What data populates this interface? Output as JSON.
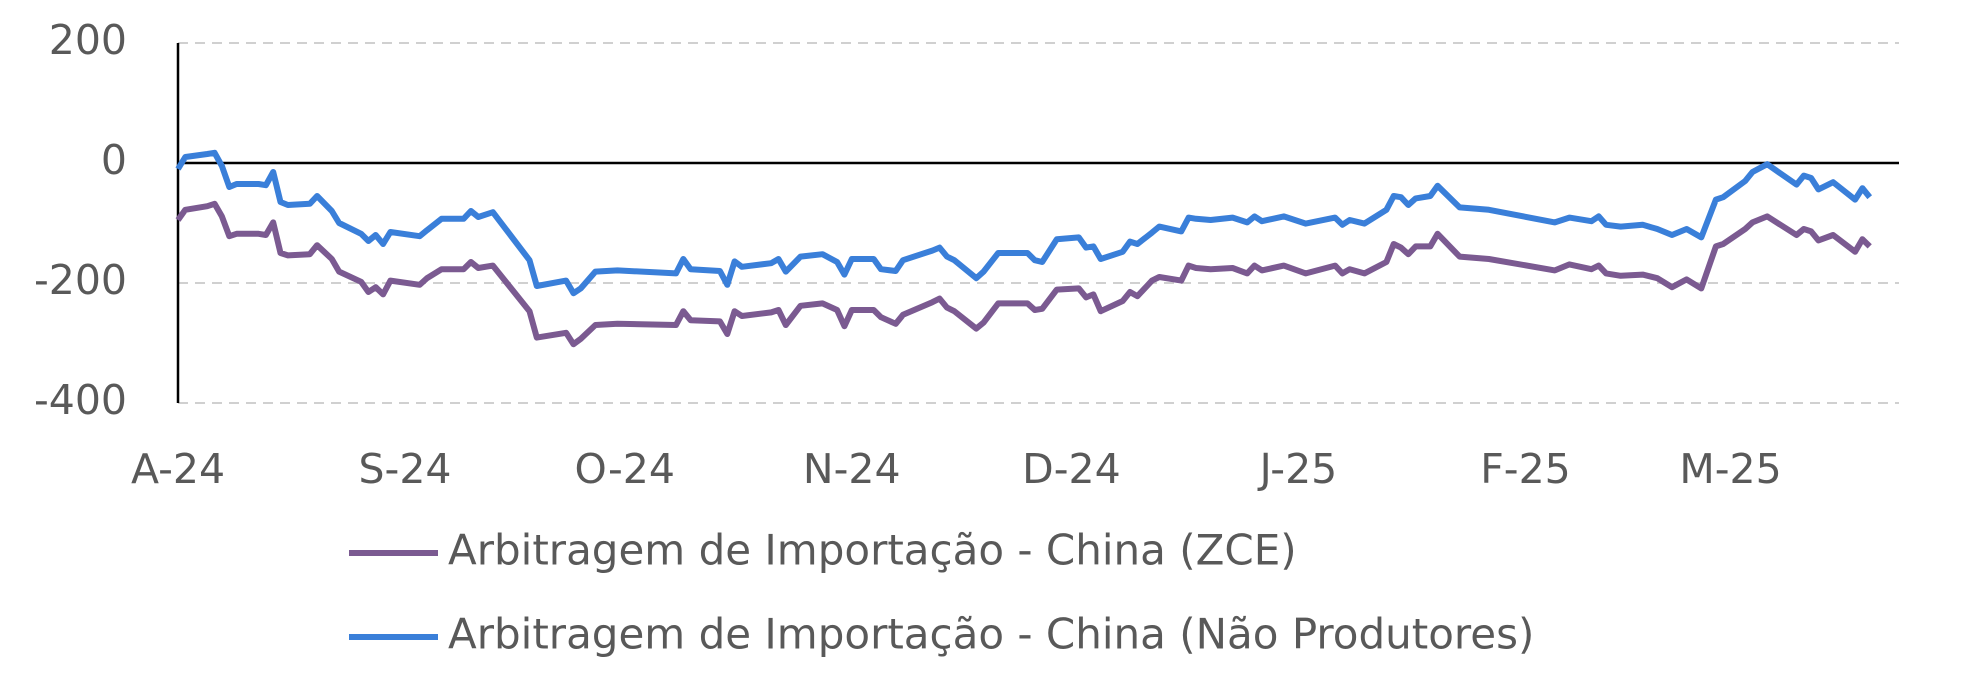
{
  "chart_data": {
    "type": "line",
    "x": [
      0,
      1,
      4,
      5,
      6,
      7,
      8,
      11,
      12,
      13,
      14,
      15,
      18,
      19,
      21,
      22,
      25,
      26,
      27,
      28,
      29,
      33,
      34,
      36,
      39,
      40,
      41,
      43,
      48,
      49,
      53,
      54,
      55,
      57,
      60,
      68,
      69,
      70,
      74,
      75,
      76,
      77,
      81,
      82,
      83,
      85,
      88,
      90,
      91,
      92,
      95,
      96,
      98,
      99,
      103,
      104,
      105,
      106,
      109,
      110,
      112,
      116,
      117,
      118,
      120,
      123,
      124,
      125,
      126,
      129,
      130,
      131,
      133,
      134,
      137,
      138,
      139,
      141,
      144,
      146,
      147,
      148,
      151,
      154,
      158,
      159,
      160,
      162,
      165,
      166,
      167,
      168,
      169,
      171,
      172,
      175,
      179,
      188,
      190,
      193,
      194,
      195,
      197,
      200,
      202,
      204,
      206,
      208,
      210,
      211,
      214,
      215,
      217,
      221,
      222,
      223,
      224,
      226,
      229,
      230,
      231
    ],
    "series": [
      {
        "name": "Arbitragem de Importação - China (ZCE)",
        "color": "#7b5a91",
        "values": [
          -95,
          -78,
          -72,
          -68,
          -89,
          -122,
          -118,
          -118,
          -120,
          -99,
          -150,
          -154,
          -152,
          -137,
          -160,
          -181,
          -198,
          -215,
          -207,
          -219,
          -196,
          -203,
          -192,
          -177,
          -177,
          -165,
          -175,
          -171,
          -247,
          -291,
          -283,
          -302,
          -293,
          -270,
          -268,
          -270,
          -247,
          -262,
          -264,
          -285,
          -247,
          -255,
          -249,
          -245,
          -270,
          -238,
          -234,
          -245,
          -272,
          -245,
          -245,
          -257,
          -268,
          -253,
          -232,
          -226,
          -241,
          -247,
          -276,
          -266,
          -234,
          -234,
          -245,
          -243,
          -211,
          -209,
          -224,
          -219,
          -247,
          -230,
          -215,
          -222,
          -196,
          -190,
          -196,
          -171,
          -175,
          -177,
          -175,
          -184,
          -171,
          -179,
          -171,
          -184,
          -171,
          -184,
          -177,
          -184,
          -165,
          -135,
          -141,
          -152,
          -139,
          -139,
          -118,
          -156,
          -160,
          -179,
          -169,
          -177,
          -171,
          -184,
          -188,
          -186,
          -192,
          -207,
          -194,
          -209,
          -139,
          -135,
          -110,
          -99,
          -89,
          -120,
          -110,
          -114,
          -129,
          -120,
          -148,
          -127,
          -139
        ]
      },
      {
        "name": "Arbitragem de Importação - China (Não Produtores)",
        "color": "#3a7fd9",
        "values": [
          -10,
          10,
          15,
          17,
          -5,
          -40,
          -35,
          -35,
          -37,
          -15,
          -65,
          -70,
          -68,
          -55,
          -80,
          -100,
          -118,
          -130,
          -120,
          -135,
          -115,
          -122,
          -112,
          -93,
          -93,
          -80,
          -90,
          -82,
          -162,
          -205,
          -196,
          -217,
          -209,
          -181,
          -179,
          -184,
          -160,
          -177,
          -180,
          -203,
          -164,
          -173,
          -167,
          -160,
          -181,
          -156,
          -152,
          -165,
          -186,
          -160,
          -160,
          -177,
          -180,
          -162,
          -146,
          -141,
          -156,
          -162,
          -192,
          -181,
          -150,
          -150,
          -162,
          -165,
          -127,
          -124,
          -141,
          -139,
          -160,
          -148,
          -131,
          -135,
          -116,
          -106,
          -114,
          -91,
          -93,
          -95,
          -91,
          -99,
          -89,
          -97,
          -89,
          -101,
          -91,
          -103,
          -95,
          -101,
          -78,
          -55,
          -57,
          -70,
          -59,
          -55,
          -38,
          -74,
          -78,
          -99,
          -91,
          -97,
          -89,
          -103,
          -106,
          -103,
          -110,
          -120,
          -110,
          -124,
          -61,
          -57,
          -30,
          -15,
          -2,
          -36,
          -21,
          -25,
          -44,
          -32,
          -61,
          -42,
          -57
        ]
      }
    ],
    "xlim": [
      0,
      235
    ],
    "xticks": [
      {
        "value": 0,
        "label": "A-24"
      },
      {
        "value": 31,
        "label": "S-24"
      },
      {
        "value": 61,
        "label": "O-24"
      },
      {
        "value": 92,
        "label": "N-24"
      },
      {
        "value": 122,
        "label": "D-24"
      },
      {
        "value": 153,
        "label": "J-25"
      },
      {
        "value": 184,
        "label": "F-25"
      },
      {
        "value": 212,
        "label": "M-25"
      }
    ],
    "ylim": [
      -400,
      200
    ],
    "yticks": [
      -400,
      -200,
      0,
      200
    ],
    "grid": true,
    "legend": "bottom"
  }
}
